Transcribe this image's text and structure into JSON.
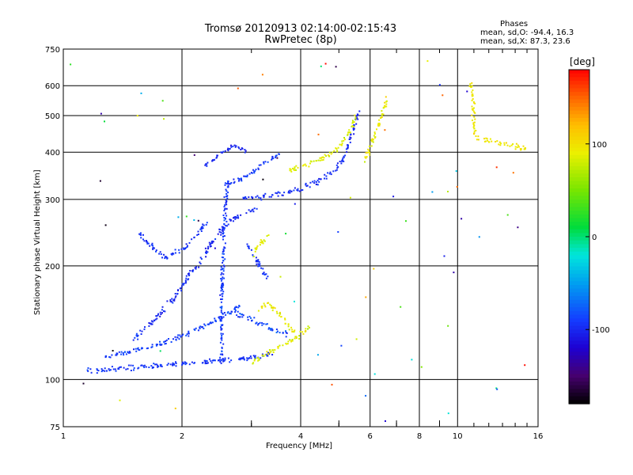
{
  "header": {
    "title_line1": "Tromsø 20120913 02:14:00-02:15:43",
    "title_line2": "RwPretec (8p)"
  },
  "stats": {
    "heading": "Phases",
    "line_o": "mean, sd,O: -94.4, 16.3",
    "line_x": "mean, sd,X: 87.3, 23.6"
  },
  "colorbar": {
    "label": "[deg]",
    "ticks": [
      "100",
      "0",
      "-100"
    ],
    "tick_values": [
      100,
      0,
      -100
    ],
    "range": [
      -180,
      180
    ]
  },
  "chart_data": {
    "type": "scatter",
    "xlabel": "Frequency [MHz]",
    "ylabel": "Stationary phase Virtual Height [km]",
    "xscale": "log",
    "yscale": "log",
    "xlim": [
      1,
      16
    ],
    "ylim": [
      75,
      750
    ],
    "xticks": [
      1,
      2,
      4,
      6,
      8,
      10,
      16
    ],
    "xtick_labels": [
      "1",
      "2",
      "4",
      "6",
      "8",
      "10",
      "16"
    ],
    "xminor": [
      3,
      5,
      7,
      9
    ],
    "yticks": [
      75,
      100,
      200,
      300,
      400,
      500,
      600,
      750
    ],
    "ytick_labels": [
      "75",
      "100",
      "200",
      "300",
      "400",
      "500",
      "600",
      "750"
    ],
    "grid": true,
    "traces": [
      {
        "mode": "O",
        "phase": -94.4,
        "spread": 16.3,
        "x": [
          1.15,
          1.3,
          1.5,
          1.7,
          1.9,
          2.1,
          2.3,
          2.6,
          2.9,
          3.2,
          3.4
        ],
        "y": [
          106,
          107,
          108,
          109,
          110,
          111,
          112,
          113,
          114,
          116,
          117
        ]
      },
      {
        "mode": "O",
        "phase": -90.0,
        "spread": 18.0,
        "x": [
          1.25,
          1.4,
          1.6,
          1.8,
          2.0,
          2.2,
          2.4,
          2.6,
          2.8
        ],
        "y": [
          115,
          118,
          122,
          126,
          131,
          137,
          143,
          150,
          158
        ]
      },
      {
        "mode": "O",
        "phase": -100.0,
        "spread": 20.0,
        "x": [
          1.5,
          1.7,
          1.9,
          2.05,
          2.2,
          2.35,
          2.5,
          2.7,
          2.9,
          3.1
        ],
        "y": [
          128,
          145,
          165,
          185,
          205,
          228,
          250,
          268,
          280,
          285
        ]
      },
      {
        "mode": "O",
        "phase": -95.0,
        "spread": 15.0,
        "x": [
          1.55,
          1.65,
          1.8,
          2.0,
          2.15,
          2.3
        ],
        "y": [
          245,
          228,
          212,
          222,
          240,
          262
        ]
      },
      {
        "mode": "O",
        "phase": -92.0,
        "spread": 20.0,
        "x": [
          2.5,
          2.52,
          2.55,
          2.6
        ],
        "y": [
          110,
          180,
          260,
          330
        ]
      },
      {
        "mode": "O",
        "phase": -85.0,
        "spread": 25.0,
        "x": [
          2.6,
          2.9,
          3.1,
          3.3,
          3.5,
          3.7
        ],
        "y": [
          152,
          147,
          142,
          138,
          135,
          132
        ]
      },
      {
        "mode": "O",
        "phase": -98.0,
        "spread": 16.0,
        "x": [
          2.8,
          3.0,
          3.3,
          3.6,
          4.0,
          4.4,
          4.8,
          5.1,
          5.3,
          5.6
        ],
        "y": [
          305,
          306,
          309,
          314,
          322,
          336,
          355,
          385,
          430,
          520
        ]
      },
      {
        "mode": "O",
        "phase": -92.0,
        "spread": 20.0,
        "x": [
          2.5,
          2.8,
          3.0,
          3.2,
          3.5
        ],
        "y": [
          330,
          340,
          355,
          375,
          395
        ]
      },
      {
        "mode": "O",
        "phase": -100.0,
        "spread": 18.0,
        "x": [
          2.3,
          2.5,
          2.7,
          2.9
        ],
        "y": [
          370,
          400,
          420,
          405
        ]
      },
      {
        "mode": "O",
        "phase": -95.0,
        "spread": 14.0,
        "x": [
          2.9,
          3.1,
          3.3
        ],
        "y": [
          230,
          205,
          185
        ]
      },
      {
        "mode": "X",
        "phase": 87.3,
        "spread": 23.6,
        "x": [
          3.0,
          3.3,
          3.6,
          3.9,
          4.2
        ],
        "y": [
          112,
          118,
          124,
          130,
          138
        ]
      },
      {
        "mode": "X",
        "phase": 90.0,
        "spread": 22.0,
        "x": [
          3.1,
          3.3,
          3.5,
          3.7,
          3.9
        ],
        "y": [
          155,
          160,
          150,
          140,
          132
        ]
      },
      {
        "mode": "X",
        "phase": 88.0,
        "spread": 20.0,
        "x": [
          3.0,
          3.15,
          3.3
        ],
        "y": [
          215,
          230,
          245
        ]
      },
      {
        "mode": "X",
        "phase": 85.0,
        "spread": 22.0,
        "x": [
          3.7,
          4.1,
          4.5,
          4.9,
          5.2,
          5.5
        ],
        "y": [
          360,
          370,
          385,
          405,
          440,
          500
        ]
      },
      {
        "mode": "X",
        "phase": 92.0,
        "spread": 20.0,
        "x": [
          5.8,
          6.0,
          6.2,
          6.4,
          6.6
        ],
        "y": [
          380,
          420,
          460,
          500,
          560
        ]
      },
      {
        "mode": "X",
        "phase": 95.0,
        "spread": 15.0,
        "x": [
          10.8,
          11.0,
          14.8
        ],
        "y": [
          610,
          440,
          410
        ]
      }
    ]
  }
}
